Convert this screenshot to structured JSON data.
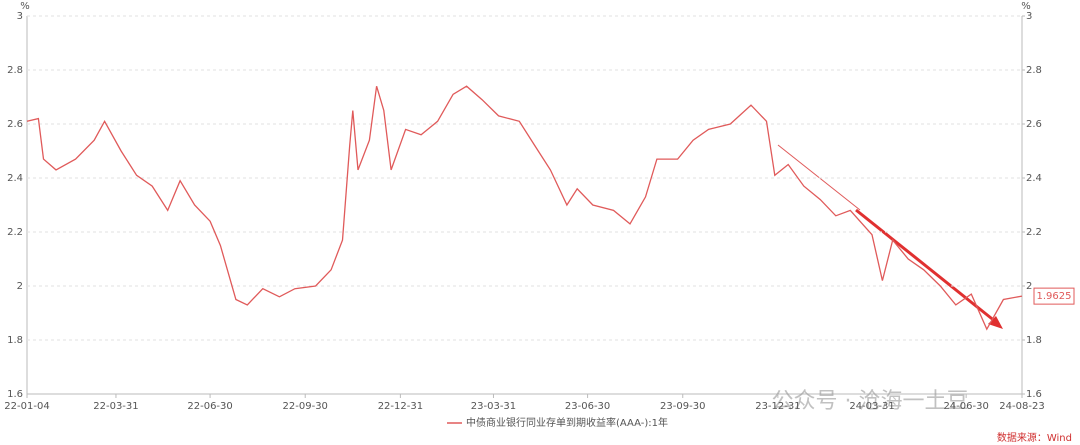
{
  "chart_data": {
    "type": "line",
    "y_unit": "%",
    "y2_unit": "%",
    "x": [
      "22-01-04",
      "22-01-15",
      "22-01-20",
      "22-02-01",
      "22-02-20",
      "22-03-10",
      "22-03-20",
      "22-04-05",
      "22-04-20",
      "22-05-05",
      "22-05-20",
      "22-06-01",
      "22-06-15",
      "22-06-30",
      "22-07-10",
      "22-07-25",
      "22-08-05",
      "22-08-20",
      "22-09-05",
      "22-09-20",
      "22-10-10",
      "22-10-25",
      "22-11-05",
      "22-11-12",
      "22-11-15",
      "22-11-20",
      "22-12-01",
      "22-12-08",
      "22-12-15",
      "22-12-22",
      "23-01-05",
      "23-01-20",
      "23-02-05",
      "23-02-20",
      "23-03-05",
      "23-03-20",
      "23-04-05",
      "23-04-25",
      "23-05-10",
      "23-05-25",
      "23-06-10",
      "23-06-20",
      "23-07-05",
      "23-07-25",
      "23-08-10",
      "23-08-25",
      "23-09-05",
      "23-09-25",
      "23-10-10",
      "23-10-25",
      "23-11-15",
      "23-12-05",
      "23-12-20",
      "23-12-28",
      "24-01-10",
      "24-01-25",
      "24-02-10",
      "24-02-25",
      "24-03-10",
      "24-03-31",
      "24-04-10",
      "24-04-20",
      "24-05-05",
      "24-05-20",
      "24-06-05",
      "24-06-20",
      "24-07-05",
      "24-07-20",
      "24-08-05",
      "24-08-23"
    ],
    "series": [
      {
        "name": "中债商业银行同业存单到期收益率(AAA-):1年",
        "color": "#e05a5a",
        "values": [
          2.61,
          2.62,
          2.47,
          2.43,
          2.47,
          2.54,
          2.61,
          2.5,
          2.41,
          2.37,
          2.28,
          2.39,
          2.3,
          2.24,
          2.15,
          1.95,
          1.93,
          1.99,
          1.96,
          1.99,
          2.0,
          2.06,
          2.17,
          2.52,
          2.65,
          2.43,
          2.54,
          2.74,
          2.65,
          2.43,
          2.58,
          2.56,
          2.61,
          2.71,
          2.74,
          2.69,
          2.63,
          2.61,
          2.52,
          2.43,
          2.3,
          2.36,
          2.3,
          2.28,
          2.23,
          2.33,
          2.47,
          2.47,
          2.54,
          2.58,
          2.6,
          2.67,
          2.61,
          2.41,
          2.45,
          2.37,
          2.32,
          2.26,
          2.28,
          2.19,
          2.02,
          2.17,
          2.1,
          2.06,
          2.0,
          1.93,
          1.97,
          1.84,
          1.95,
          1.9625
        ]
      }
    ],
    "xlim": [
      "22-01-04",
      "24-08-23"
    ],
    "xticks": [
      "22-01-04",
      "22-03-31",
      "22-06-30",
      "22-09-30",
      "22-12-31",
      "23-03-31",
      "23-06-30",
      "23-09-30",
      "23-12-31",
      "24-03-31",
      "24-06-30",
      "24-08-23"
    ],
    "ylim": [
      1.6,
      3
    ],
    "yticks": [
      1.6,
      1.8,
      2,
      2.2,
      2.4,
      2.6,
      2.8,
      3
    ],
    "y2lim": [
      1.6,
      3
    ],
    "y2ticks": [
      1.6,
      1.8,
      2,
      2.2,
      2.4,
      2.6,
      2.8,
      3
    ],
    "grid": true,
    "source": "数据来源：Wind",
    "watermark": "公众号 · 沧海一土豆"
  }
}
